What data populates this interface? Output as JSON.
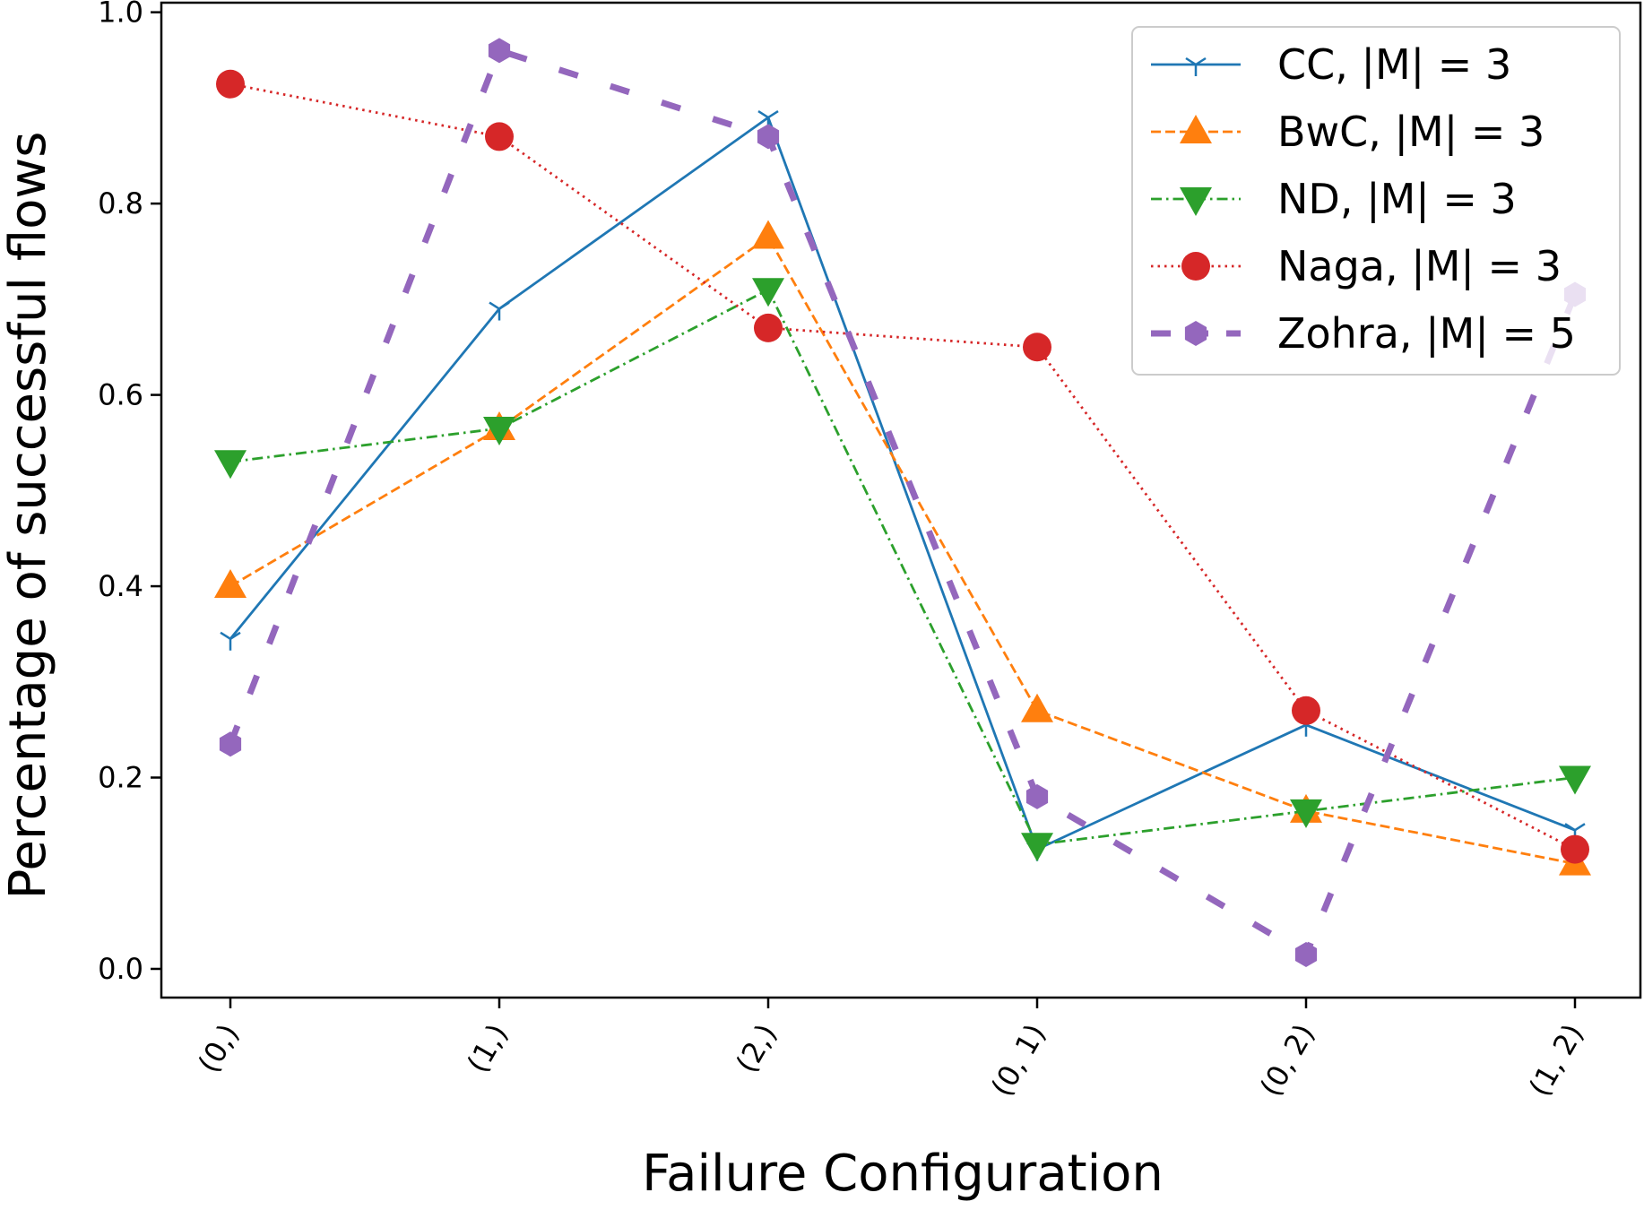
{
  "chart_data": {
    "type": "line",
    "title": "",
    "xlabel": "Failure Configuration",
    "ylabel": "Percentage of successful flows",
    "categories": [
      "(0,)",
      "(1,)",
      "(2,)",
      "(0, 1)",
      "(0, 2)",
      "(1, 2)"
    ],
    "ylim": [
      -0.03,
      1.01
    ],
    "yticks": [
      0.0,
      0.2,
      0.4,
      0.6,
      0.8,
      1.0
    ],
    "ytick_labels": [
      "0.0",
      "0.2",
      "0.4",
      "0.6",
      "0.8",
      "1.0"
    ],
    "legend_position": "top-right",
    "grid": false,
    "series": [
      {
        "name": "CC, |M| = 3",
        "color": "#1f77b4",
        "linestyle": "solid",
        "marker": "tri_down",
        "values": [
          0.345,
          0.69,
          0.89,
          0.125,
          0.255,
          0.145
        ]
      },
      {
        "name": "BwC, |M| = 3",
        "color": "#ff7f0e",
        "linestyle": "dashed",
        "marker": "triangle_up",
        "values": [
          0.4,
          0.565,
          0.765,
          0.27,
          0.165,
          0.11
        ]
      },
      {
        "name": "ND, |M| = 3",
        "color": "#2ca02c",
        "linestyle": "dashdot",
        "marker": "triangle_down",
        "values": [
          0.53,
          0.565,
          0.71,
          0.13,
          0.165,
          0.2
        ]
      },
      {
        "name": "Naga, |M| = 3",
        "color": "#d62728",
        "linestyle": "dotted",
        "marker": "circle",
        "values": [
          0.925,
          0.87,
          0.67,
          0.65,
          0.27,
          0.125
        ]
      },
      {
        "name": "Zohra, |M| = 5",
        "color": "#9467bd",
        "linestyle": "long-dash",
        "marker": "hexagon",
        "values": [
          0.235,
          0.96,
          0.87,
          0.18,
          0.015,
          0.705
        ]
      }
    ]
  }
}
